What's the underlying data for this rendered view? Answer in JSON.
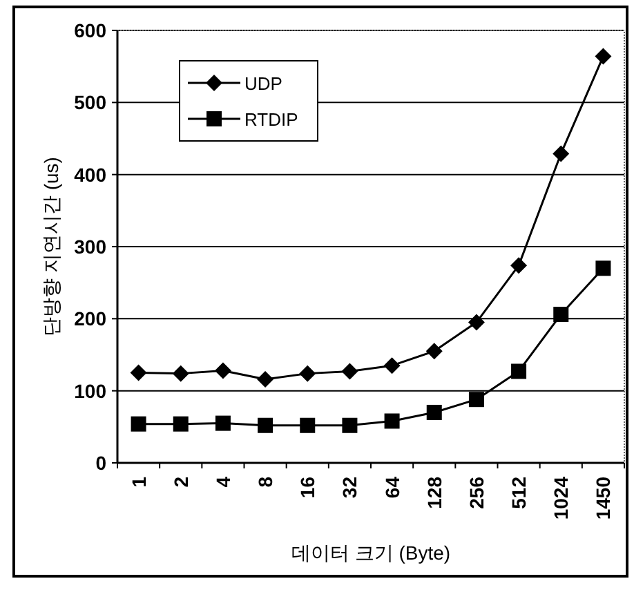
{
  "chart_data": {
    "type": "line",
    "xlabel": "데이터 크기 (Byte)",
    "ylabel": "단방향 지연시간 (us)",
    "categories": [
      "1",
      "2",
      "4",
      "8",
      "16",
      "32",
      "64",
      "128",
      "256",
      "512",
      "1024",
      "1450"
    ],
    "series": [
      {
        "name": "UDP",
        "color": "#000000",
        "marker": "diamond",
        "values": [
          125,
          124,
          128,
          116,
          124,
          127,
          135,
          155,
          195,
          274,
          429,
          564
        ]
      },
      {
        "name": "RTDIP",
        "color": "#000000",
        "marker": "square",
        "values": [
          54,
          54,
          55,
          52,
          52,
          52,
          58,
          70,
          88,
          127,
          206,
          270
        ]
      }
    ],
    "ylim": [
      0,
      600
    ],
    "yticks": [
      0,
      100,
      200,
      300,
      400,
      500,
      600
    ],
    "grid": "y",
    "legend": "top left",
    "line_style": "solid"
  }
}
